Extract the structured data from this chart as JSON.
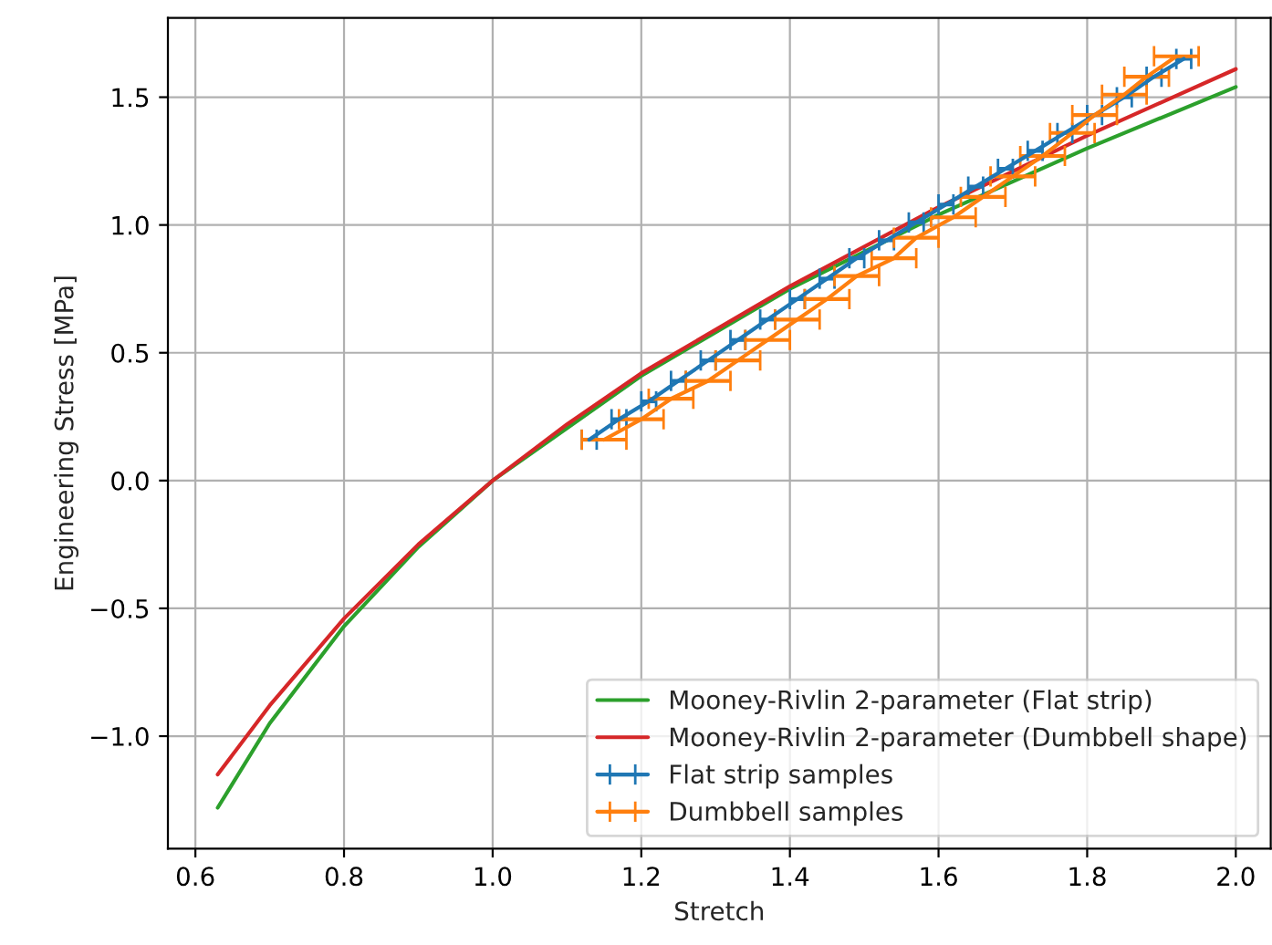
{
  "chart_data": {
    "type": "line",
    "xlabel": "Stretch",
    "ylabel": "Engineering Stress [MPa]",
    "xlim": [
      0.563,
      2.047
    ],
    "ylim": [
      -1.44,
      1.81
    ],
    "xticks": [
      {
        "value": 0.6,
        "label": "0.6"
      },
      {
        "value": 0.8,
        "label": "0.8"
      },
      {
        "value": 1.0,
        "label": "1.0"
      },
      {
        "value": 1.2,
        "label": "1.2"
      },
      {
        "value": 1.4,
        "label": "1.4"
      },
      {
        "value": 1.6,
        "label": "1.6"
      },
      {
        "value": 1.8,
        "label": "1.8"
      },
      {
        "value": 2.0,
        "label": "2.0"
      }
    ],
    "yticks": [
      {
        "value": -1.0,
        "label": "−1.0"
      },
      {
        "value": -0.5,
        "label": "−0.5"
      },
      {
        "value": 0.0,
        "label": "0.0"
      },
      {
        "value": 0.5,
        "label": "0.5"
      },
      {
        "value": 1.0,
        "label": "1.0"
      },
      {
        "value": 1.5,
        "label": "1.5"
      }
    ],
    "grid": true,
    "legend": "bottom right",
    "marker": "none",
    "line_style": "solid",
    "series": [
      {
        "name": "Mooney-Rivlin 2-parameter (Flat strip)",
        "color": "#2ca02c",
        "x": [
          0.63,
          0.7,
          0.8,
          0.9,
          1.0,
          1.2,
          1.4,
          1.6,
          1.8,
          2.0
        ],
        "values": [
          -1.28,
          -0.95,
          -0.57,
          -0.26,
          0.0,
          0.41,
          0.75,
          1.04,
          1.3,
          1.54
        ]
      },
      {
        "name": "Mooney-Rivlin 2-parameter (Dumbbell shape)",
        "color": "#d62728",
        "x": [
          0.63,
          0.7,
          0.8,
          0.9,
          1.0,
          1.1,
          1.2,
          1.4,
          1.6,
          1.8,
          2.0
        ],
        "values": [
          -1.15,
          -0.88,
          -0.54,
          -0.25,
          0.0,
          0.22,
          0.42,
          0.76,
          1.07,
          1.35,
          1.61
        ]
      },
      {
        "name": "Flat strip samples",
        "color": "#1f77b4",
        "x": [
          1.13,
          1.17,
          1.21,
          1.25,
          1.29,
          1.33,
          1.37,
          1.41,
          1.45,
          1.49,
          1.53,
          1.57,
          1.61,
          1.65,
          1.69,
          1.73,
          1.77,
          1.81,
          1.85,
          1.89,
          1.93
        ],
        "values": [
          0.16,
          0.24,
          0.31,
          0.39,
          0.47,
          0.55,
          0.63,
          0.71,
          0.79,
          0.87,
          0.94,
          1.01,
          1.08,
          1.15,
          1.22,
          1.29,
          1.36,
          1.43,
          1.5,
          1.58,
          1.65
        ],
        "xerrors": [
          0.01,
          0.01,
          0.01,
          0.01,
          0.01,
          0.01,
          0.01,
          0.01,
          0.01,
          0.01,
          0.01,
          0.01,
          0.01,
          0.01,
          0.01,
          0.01,
          0.01,
          0.01,
          0.01,
          0.01,
          0.01
        ]
      },
      {
        "name": "Dumbbell samples",
        "color": "#ff7f0e",
        "x": [
          1.15,
          1.2,
          1.24,
          1.29,
          1.33,
          1.37,
          1.41,
          1.45,
          1.49,
          1.54,
          1.57,
          1.62,
          1.66,
          1.7,
          1.74,
          1.78,
          1.81,
          1.85,
          1.88,
          1.92
        ],
        "values": [
          0.16,
          0.24,
          0.32,
          0.39,
          0.47,
          0.55,
          0.63,
          0.71,
          0.8,
          0.87,
          0.95,
          1.03,
          1.11,
          1.19,
          1.27,
          1.36,
          1.43,
          1.51,
          1.58,
          1.66
        ],
        "xerrors": [
          0.03,
          0.03,
          0.03,
          0.03,
          0.03,
          0.03,
          0.03,
          0.03,
          0.03,
          0.03,
          0.03,
          0.03,
          0.03,
          0.03,
          0.03,
          0.03,
          0.03,
          0.03,
          0.03,
          0.03
        ]
      }
    ]
  }
}
